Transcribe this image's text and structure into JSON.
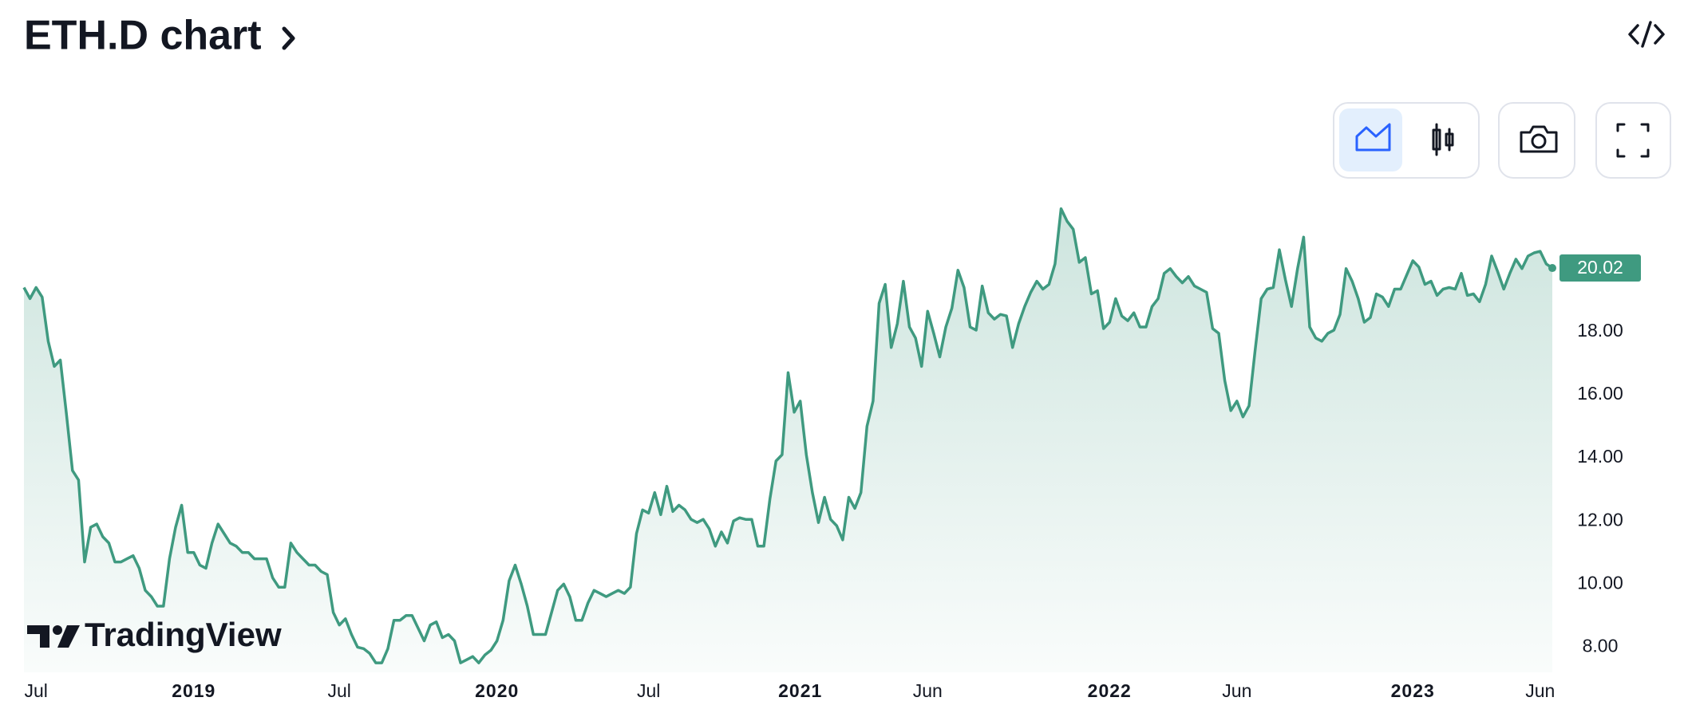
{
  "chart_data": {
    "type": "line",
    "title": "ETH.D chart",
    "watermark": "TradingView",
    "categories": [
      null,
      null,
      "Jul",
      null,
      null,
      null,
      null,
      null,
      null,
      null,
      null,
      null,
      null,
      null,
      null,
      null,
      null,
      null,
      null,
      null,
      null,
      null,
      null,
      null,
      null,
      null,
      null,
      null,
      "2019",
      null,
      null,
      null,
      null,
      null,
      null,
      null,
      null,
      null,
      null,
      null,
      null,
      null,
      null,
      null,
      null,
      null,
      null,
      null,
      null,
      null,
      null,
      null,
      "Jul",
      null,
      null,
      null,
      null,
      null,
      null,
      null,
      null,
      null,
      null,
      null,
      null,
      null,
      null,
      null,
      null,
      null,
      null,
      null,
      null,
      null,
      null,
      null,
      null,
      null,
      "2020",
      null,
      null,
      null,
      null,
      null,
      null,
      null,
      null,
      null,
      null,
      null,
      null,
      null,
      null,
      null,
      null,
      null,
      null,
      null,
      null,
      null,
      null,
      null,
      null,
      "Jul",
      null,
      null,
      null,
      null,
      null,
      null,
      null,
      null,
      null,
      null,
      null,
      null,
      null,
      null,
      null,
      null,
      null,
      null,
      null,
      null,
      null,
      null,
      null,
      null,
      "2021",
      null,
      null,
      null,
      null,
      null,
      null,
      null,
      null,
      null,
      null,
      null,
      null,
      null,
      null,
      null,
      null,
      null,
      null,
      null,
      null,
      "Jun",
      null,
      null,
      null,
      null,
      null,
      null,
      null,
      null,
      null,
      null,
      null,
      null,
      null,
      null,
      null,
      null,
      null,
      null,
      null,
      null,
      null,
      null,
      null,
      null,
      null,
      null,
      null,
      null,
      null,
      "2022",
      null,
      null,
      null,
      null,
      null,
      null,
      null,
      null,
      null,
      null,
      null,
      null,
      null,
      null,
      null,
      null,
      null,
      null,
      null,
      null,
      "Jun",
      null,
      null,
      null,
      null,
      null,
      null,
      null,
      null,
      null,
      null,
      null,
      null,
      null,
      null,
      null,
      null,
      null,
      null,
      null,
      null,
      null,
      null,
      null,
      null,
      null,
      null,
      null,
      null,
      "2023",
      null,
      null,
      null,
      null,
      null,
      null,
      null,
      null,
      null,
      null,
      null,
      null,
      null,
      null,
      null,
      null,
      null,
      null,
      null,
      null,
      "Jun",
      null,
      null
    ],
    "series": [
      {
        "color": "#3f9a80",
        "values": [
          19.4,
          19.05,
          19.4,
          19.1,
          17.7,
          16.9,
          17.1,
          15.4,
          13.6,
          13.3,
          10.7,
          11.8,
          11.9,
          11.5,
          11.3,
          10.7,
          10.7,
          10.8,
          10.9,
          10.5,
          9.8,
          9.6,
          9.3,
          9.3,
          10.8,
          11.8,
          12.5,
          11.0,
          11.0,
          10.6,
          10.5,
          11.3,
          11.9,
          11.6,
          11.3,
          11.2,
          11.0,
          11.0,
          10.8,
          10.8,
          10.8,
          10.2,
          9.9,
          9.9,
          11.3,
          11.0,
          10.8,
          10.6,
          10.6,
          10.4,
          10.3,
          9.1,
          8.7,
          8.9,
          8.4,
          8.0,
          7.95,
          7.8,
          7.5,
          7.5,
          7.95,
          8.85,
          8.85,
          9.0,
          9.0,
          8.6,
          8.2,
          8.7,
          8.8,
          8.3,
          8.4,
          8.2,
          7.5,
          7.6,
          7.7,
          7.5,
          7.75,
          7.9,
          8.2,
          8.85,
          10.1,
          10.6,
          10.0,
          9.3,
          8.4,
          8.4,
          8.4,
          9.1,
          9.8,
          10.0,
          9.6,
          8.85,
          8.85,
          9.4,
          9.8,
          9.7,
          9.6,
          9.7,
          9.8,
          9.7,
          9.9,
          11.6,
          12.35,
          12.25,
          12.9,
          12.2,
          13.1,
          12.3,
          12.5,
          12.35,
          12.05,
          11.95,
          12.05,
          11.75,
          11.2,
          11.65,
          11.3,
          12.0,
          12.1,
          12.05,
          12.05,
          11.2,
          11.2,
          12.7,
          13.9,
          14.1,
          16.7,
          15.45,
          15.8,
          14.1,
          12.9,
          11.95,
          12.75,
          12.05,
          11.85,
          11.4,
          12.75,
          12.4,
          12.9,
          15.0,
          15.8,
          18.9,
          19.5,
          17.5,
          18.25,
          19.6,
          18.15,
          17.8,
          16.9,
          18.65,
          17.95,
          17.2,
          18.15,
          18.75,
          19.95,
          19.4,
          18.15,
          18.05,
          19.45,
          18.6,
          18.4,
          18.55,
          18.5,
          17.5,
          18.25,
          18.8,
          19.25,
          19.6,
          19.35,
          19.5,
          20.15,
          21.9,
          21.5,
          21.25,
          20.2,
          20.35,
          19.2,
          19.3,
          18.1,
          18.3,
          19.05,
          18.5,
          18.35,
          18.6,
          18.15,
          18.15,
          18.8,
          19.05,
          19.85,
          20.0,
          19.75,
          19.55,
          19.75,
          19.45,
          19.35,
          19.25,
          18.1,
          17.95,
          16.45,
          15.5,
          15.8,
          15.3,
          15.65,
          17.4,
          19.05,
          19.35,
          19.4,
          20.6,
          19.65,
          18.8,
          20.0,
          21.0,
          18.15,
          17.8,
          17.7,
          17.95,
          18.05,
          18.55,
          20.0,
          19.6,
          19.05,
          18.3,
          18.45,
          19.2,
          19.1,
          18.8,
          19.35,
          19.35,
          19.8,
          20.25,
          20.05,
          19.5,
          19.6,
          19.15,
          19.35,
          19.4,
          19.35,
          19.85,
          19.15,
          19.2,
          18.95,
          19.5,
          20.4,
          19.9,
          19.35,
          19.85,
          20.3,
          20.0,
          20.4,
          20.5,
          20.55,
          20.15,
          20.02
        ]
      }
    ],
    "ylim": [
      7.2,
      22.6
    ],
    "yticks": [
      {
        "value": 8,
        "label": "8.00"
      },
      {
        "value": 10,
        "label": "10.00"
      },
      {
        "value": 12,
        "label": "12.00"
      },
      {
        "value": 14,
        "label": "14.00"
      },
      {
        "value": 16,
        "label": "16.00"
      },
      {
        "value": 18,
        "label": "18.00"
      }
    ],
    "grid": false
  }
}
